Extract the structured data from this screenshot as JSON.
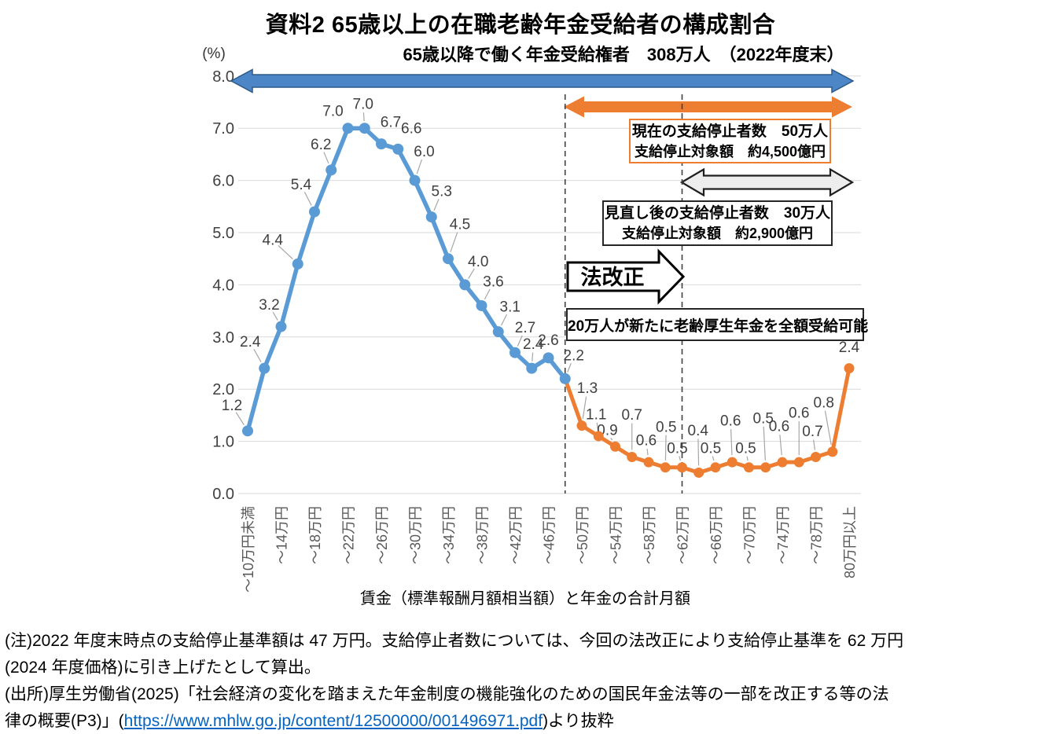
{
  "title": "資料2 65歳以上の在職老齢年金受給者の構成割合",
  "chart": {
    "subtitle": "65歳以降で働く年金受給権者　308万人　（2022年度末）",
    "y_axis_unit_label": "(%)",
    "x_axis_title": "賃金（標準報酬月額相当額）と年金の合計月額"
  },
  "annotations": {
    "law_reform_arrow_label": "法改正",
    "current_suspension_box": {
      "line1": "現在の支給停止者数　50万人",
      "line2": "支給停止対象額　約4,500億円"
    },
    "revised_suspension_box": {
      "line1": "見直し後の支給停止者数　30万人",
      "line2": "支給停止対象額　約2,900億円"
    },
    "full_receipt_box": {
      "text": "20万人が新たに老齢厚生年金を全額受給可能"
    }
  },
  "chart_data": {
    "type": "line",
    "title": "資料2 65歳以上の在職老齢年金受給者の構成割合",
    "subtitle": "65歳以降で働く年金受給権者　308万人　（2022年度末）",
    "xlabel": "賃金（標準報酬月額相当額）と年金の合計月額",
    "ylabel": "(%)",
    "ylim": [
      0,
      8
    ],
    "y_tick_step": 1,
    "grid": true,
    "legend": "none",
    "points_per_tick": 2,
    "num_points": 37,
    "x_tick_labels": [
      "～10万円未満",
      "～14万円",
      "～18万円",
      "～22万円",
      "～26万円",
      "～30万円",
      "～34万円",
      "～38万円",
      "～42万円",
      "～46万円",
      "～50万円",
      "～54万円",
      "～58万円",
      "～62万円",
      "～66万円",
      "～70万円",
      "～74万円",
      "～78万円",
      "80万円以上"
    ],
    "series": [
      {
        "name": "blue",
        "color": "#5B9BD5",
        "start_index": 0,
        "values": [
          1.2,
          2.4,
          3.2,
          4.4,
          5.4,
          6.2,
          7.0,
          7.0,
          6.7,
          6.6,
          6.0,
          5.3,
          4.5,
          4.0,
          3.6,
          3.1,
          2.7,
          2.4,
          2.6,
          2.2
        ]
      },
      {
        "name": "orange",
        "color": "#ED7D31",
        "start_index": 20,
        "values": [
          1.3,
          1.1,
          0.9,
          0.7,
          0.6,
          0.5,
          0.5,
          0.4,
          0.5,
          0.6,
          0.5,
          0.5,
          0.6,
          0.6,
          0.7,
          0.8,
          2.4
        ]
      }
    ],
    "dashed_vline_point_indices": [
      19,
      26
    ]
  },
  "colors": {
    "blue_line": "#5B9BD5",
    "orange_line": "#ED7D31",
    "blue_arrow_fill": "#4C86C6",
    "blue_arrow_border": "#2C5A88",
    "orange_arrow_fill": "#ED7D31",
    "gray_arrow_fill": "#EDEDED",
    "gridline": "#D9D9D9",
    "data_label_text": "#404040",
    "axis_tick_text": "#595959",
    "link": "#0563C1"
  },
  "notes": {
    "note_line1": "(注)2022 年度末時点の支給停止基準額は 47 万円。支給停止者数については、今回の法改正により支給停止基準を 62 万円",
    "note_line2": "(2024 年度価格)に引き上げたとして算出。",
    "source_line1": "(出所)厚生労働省(2025)「社会経済の変化を踏まえた年金制度の機能強化のための国民年金法等の一部を改正する等の法",
    "source_line2_prefix": "律の概要(P3)」(",
    "source_link": "https://www.mhlw.go.jp/content/12500000/001496971.pdf",
    "source_line2_suffix": ")より抜粋"
  }
}
